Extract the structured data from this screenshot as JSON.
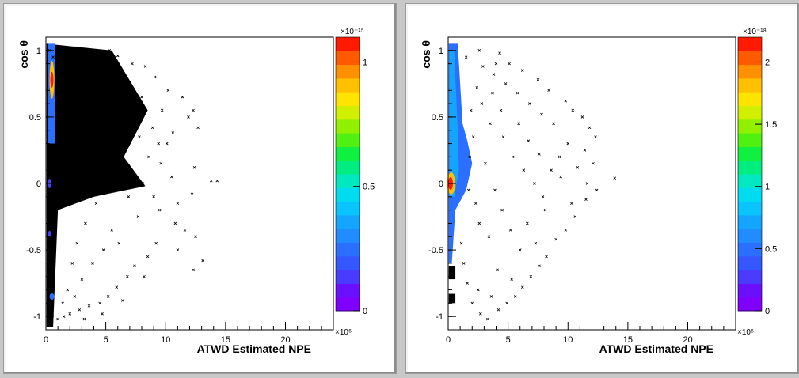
{
  "chart_data": [
    {
      "type": "scatter",
      "xlabel": "ATWD Estimated NPE",
      "ylabel": "cos θ",
      "xlim": [
        0,
        24
      ],
      "ylim": [
        -1.1,
        1.1
      ],
      "x_ticks": [
        "0",
        "5",
        "10",
        "15",
        "20"
      ],
      "y_ticks": [
        "-1",
        "-0.5",
        "0",
        "0.5",
        "1"
      ],
      "x_multiplier": "×10⁶",
      "colorbar": {
        "multiplier": "×10⁻¹⁵",
        "ticks": [
          "0",
          "0.5",
          "1"
        ],
        "range": [
          0,
          1.1
        ]
      },
      "points": [
        [
          0.3,
          1.0
        ],
        [
          0.6,
          0.95
        ],
        [
          1.2,
          0.98
        ],
        [
          2.5,
          1.02
        ],
        [
          4.1,
          0.97
        ],
        [
          5.3,
          1.0
        ],
        [
          6.0,
          0.96
        ],
        [
          7.2,
          0.9
        ],
        [
          8.3,
          0.88
        ],
        [
          9.1,
          0.8
        ],
        [
          10.2,
          0.7
        ],
        [
          11.4,
          0.65
        ],
        [
          12.3,
          0.55
        ],
        [
          11.9,
          0.5
        ],
        [
          12.7,
          0.42
        ],
        [
          10.6,
          0.38
        ],
        [
          9.4,
          0.3
        ],
        [
          7.8,
          0.35
        ],
        [
          8.6,
          0.2
        ],
        [
          9.6,
          0.15
        ],
        [
          12.4,
          0.12
        ],
        [
          13.8,
          0.02
        ],
        [
          14.3,
          0.02
        ],
        [
          12.2,
          -0.08
        ],
        [
          11.0,
          -0.15
        ],
        [
          9.5,
          -0.2
        ],
        [
          10.8,
          -0.3
        ],
        [
          12.5,
          -0.4
        ],
        [
          13.1,
          -0.58
        ],
        [
          12.3,
          -0.65
        ],
        [
          11.0,
          -0.5
        ],
        [
          9.2,
          -0.45
        ],
        [
          8.5,
          -0.55
        ],
        [
          7.4,
          -0.62
        ],
        [
          6.8,
          -0.7
        ],
        [
          5.9,
          -0.78
        ],
        [
          5.2,
          -0.85
        ],
        [
          4.5,
          -0.9
        ],
        [
          3.6,
          -0.92
        ],
        [
          2.8,
          -0.95
        ],
        [
          2.0,
          -0.98
        ],
        [
          1.5,
          -1.0
        ],
        [
          1.0,
          -1.02
        ],
        [
          6.3,
          0.62
        ],
        [
          7.5,
          0.5
        ],
        [
          8.9,
          0.42
        ],
        [
          10.1,
          0.3
        ],
        [
          5.8,
          0.05
        ],
        [
          6.9,
          -0.1
        ],
        [
          7.7,
          -0.25
        ],
        [
          8.1,
          0.0
        ],
        [
          5.5,
          -0.35
        ],
        [
          4.8,
          -0.5
        ],
        [
          3.9,
          -0.6
        ],
        [
          3.0,
          -0.72
        ],
        [
          4.0,
          0.8
        ],
        [
          5.0,
          0.7
        ],
        [
          6.5,
          0.78
        ],
        [
          3.4,
          0.6
        ],
        [
          2.9,
          0.4
        ],
        [
          3.6,
          0.2
        ],
        [
          4.2,
          -0.15
        ],
        [
          3.3,
          -0.3
        ],
        [
          2.6,
          -0.45
        ],
        [
          2.2,
          -0.6
        ],
        [
          1.8,
          -0.8
        ],
        [
          1.4,
          -0.9
        ],
        [
          2.4,
          -0.85
        ],
        [
          7.0,
          0.1
        ],
        [
          6.1,
          -0.45
        ],
        [
          9.0,
          -0.1
        ],
        [
          10.5,
          0.05
        ],
        [
          11.6,
          -0.35
        ],
        [
          8.2,
          -0.7
        ],
        [
          6.4,
          -0.88
        ],
        [
          4.7,
          -0.98
        ],
        [
          3.2,
          -1.02
        ],
        [
          9.7,
          0.55
        ],
        [
          8.0,
          0.65
        ],
        [
          7.1,
          0.72
        ]
      ]
    },
    {
      "type": "scatter",
      "xlabel": "ATWD Estimated NPE",
      "ylabel": "cos θ",
      "xlim": [
        0,
        24
      ],
      "ylim": [
        -1.1,
        1.1
      ],
      "x_ticks": [
        "0",
        "5",
        "10",
        "15",
        "20"
      ],
      "y_ticks": [
        "-1",
        "-0.5",
        "0",
        "0.5",
        "1"
      ],
      "x_multiplier": "×10⁶",
      "colorbar": {
        "multiplier": "×10⁻¹⁸",
        "ticks": [
          "0",
          "0.5",
          "1",
          "1.5",
          "2"
        ],
        "range": [
          0,
          2.2
        ]
      },
      "points": [
        [
          1.5,
          0.95
        ],
        [
          2.6,
          1.0
        ],
        [
          4.3,
          0.98
        ],
        [
          5.1,
          0.9
        ],
        [
          6.2,
          0.85
        ],
        [
          7.5,
          0.78
        ],
        [
          8.4,
          0.7
        ],
        [
          9.8,
          0.62
        ],
        [
          10.4,
          0.55
        ],
        [
          11.2,
          0.5
        ],
        [
          11.8,
          0.42
        ],
        [
          12.3,
          0.35
        ],
        [
          11.4,
          0.25
        ],
        [
          12.1,
          0.15
        ],
        [
          13.9,
          0.04
        ],
        [
          12.4,
          -0.05
        ],
        [
          11.5,
          -0.12
        ],
        [
          10.6,
          -0.25
        ],
        [
          9.8,
          -0.35
        ],
        [
          9.0,
          -0.42
        ],
        [
          8.2,
          -0.55
        ],
        [
          7.6,
          -0.62
        ],
        [
          6.9,
          -0.7
        ],
        [
          6.2,
          -0.78
        ],
        [
          5.6,
          -0.85
        ],
        [
          4.9,
          -0.9
        ],
        [
          4.2,
          -0.95
        ],
        [
          3.3,
          -1.02
        ],
        [
          2.7,
          -0.98
        ],
        [
          2.0,
          -0.9
        ],
        [
          1.6,
          -0.75
        ],
        [
          1.3,
          -0.6
        ],
        [
          1.1,
          -0.45
        ],
        [
          2.8,
          0.6
        ],
        [
          3.5,
          0.45
        ],
        [
          4.6,
          0.35
        ],
        [
          5.4,
          0.2
        ],
        [
          6.3,
          0.1
        ],
        [
          7.2,
          0.0
        ],
        [
          7.9,
          -0.1
        ],
        [
          8.6,
          0.1
        ],
        [
          9.3,
          0.2
        ],
        [
          10.0,
          0.3
        ],
        [
          8.8,
          0.45
        ],
        [
          7.8,
          0.52
        ],
        [
          6.8,
          0.6
        ],
        [
          5.8,
          0.68
        ],
        [
          4.8,
          0.75
        ],
        [
          3.8,
          0.82
        ],
        [
          2.9,
          0.88
        ],
        [
          3.1,
          0.15
        ],
        [
          3.9,
          -0.05
        ],
        [
          4.5,
          -0.2
        ],
        [
          5.2,
          -0.35
        ],
        [
          6.0,
          -0.5
        ],
        [
          3.4,
          -0.4
        ],
        [
          2.6,
          -0.3
        ],
        [
          2.3,
          -0.15
        ],
        [
          4.1,
          -0.65
        ],
        [
          5.3,
          -0.72
        ],
        [
          3.6,
          -0.85
        ],
        [
          2.5,
          -0.8
        ],
        [
          6.6,
          -0.3
        ],
        [
          7.3,
          -0.45
        ],
        [
          8.1,
          -0.2
        ],
        [
          9.4,
          0.05
        ],
        [
          10.8,
          0.12
        ],
        [
          11.6,
          0.0
        ],
        [
          10.3,
          -0.15
        ],
        [
          5.9,
          0.45
        ],
        [
          6.7,
          0.32
        ],
        [
          7.6,
          0.22
        ],
        [
          4.4,
          0.55
        ],
        [
          3.7,
          0.68
        ],
        [
          2.4,
          0.72
        ],
        [
          1.9,
          0.55
        ],
        [
          2.1,
          0.35
        ],
        [
          1.8,
          0.2
        ],
        [
          1.7,
          -0.05
        ],
        [
          4.0,
          0.9
        ]
      ]
    }
  ]
}
